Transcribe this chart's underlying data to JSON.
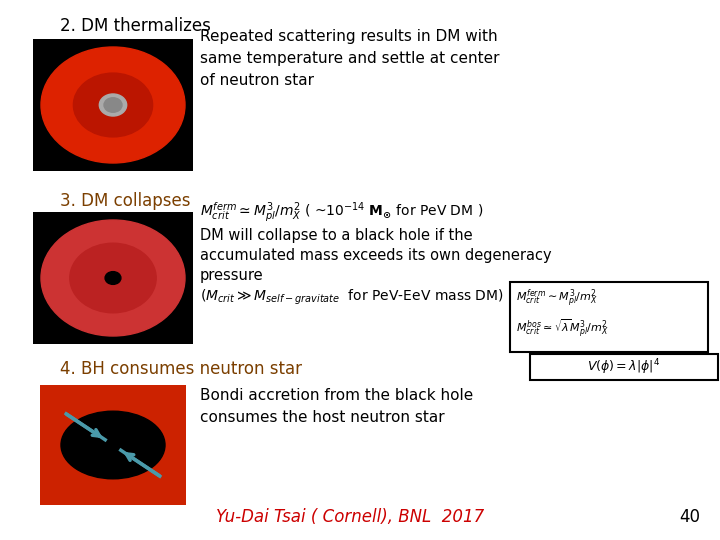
{
  "bg_color": "#ffffff",
  "title_color": "#000000",
  "section2_color": "#8B4513",
  "section3_color": "#8B4513",
  "text_color": "#000000",
  "footer_color": "#cc0000",
  "section1_label": "2. DM thermalizes",
  "section2_label": "3. DM collapses",
  "section3_label": "4. BH consumes neutron star",
  "text1": "Repeated scattering results in DM with\nsame temperature and settle at center\nof neutron star",
  "text2_line1": "DM will collapse to a black hole if the",
  "text2_line2": "accumulated mass exceeds its own degeneracy",
  "text2_line3": "pressure",
  "text2_line4": "($M_{crit} \\gg M_{self-gravitate}$  for PeV-EeV mass DM)",
  "text3": "Bondi accretion from the black hole\nconsumes the host neutron star",
  "footer": "Yu-Dai Tsai ( Cornell), BNL  2017",
  "page_num": "40",
  "eq1": "$M^{ferm}_{crit} \\simeq M^3_{pl}/m^2_X$ ( ~$10^{-14}$ $\\mathbf{M_{\\odot}}$ for PeV DM )",
  "eq2_line1": "$M^{ferm}_{crit} \\sim M^3_{pl}/m^2_X$",
  "eq2_line2": "$M^{bos}_{crit} \\simeq \\sqrt{\\lambda}M^3_{pl}/m^2_X$",
  "eq2_line3": "$V(\\phi) = \\lambda|\\phi|^4$",
  "arrow_color": "#4a9aaa",
  "ns1_outer_color": "#dd2200",
  "ns1_inner_color": "#cc2200",
  "ns2_outer_color": "#dd2200",
  "ns2_inner_color": "#bb1800",
  "bh_bg_color": "#cc2200"
}
